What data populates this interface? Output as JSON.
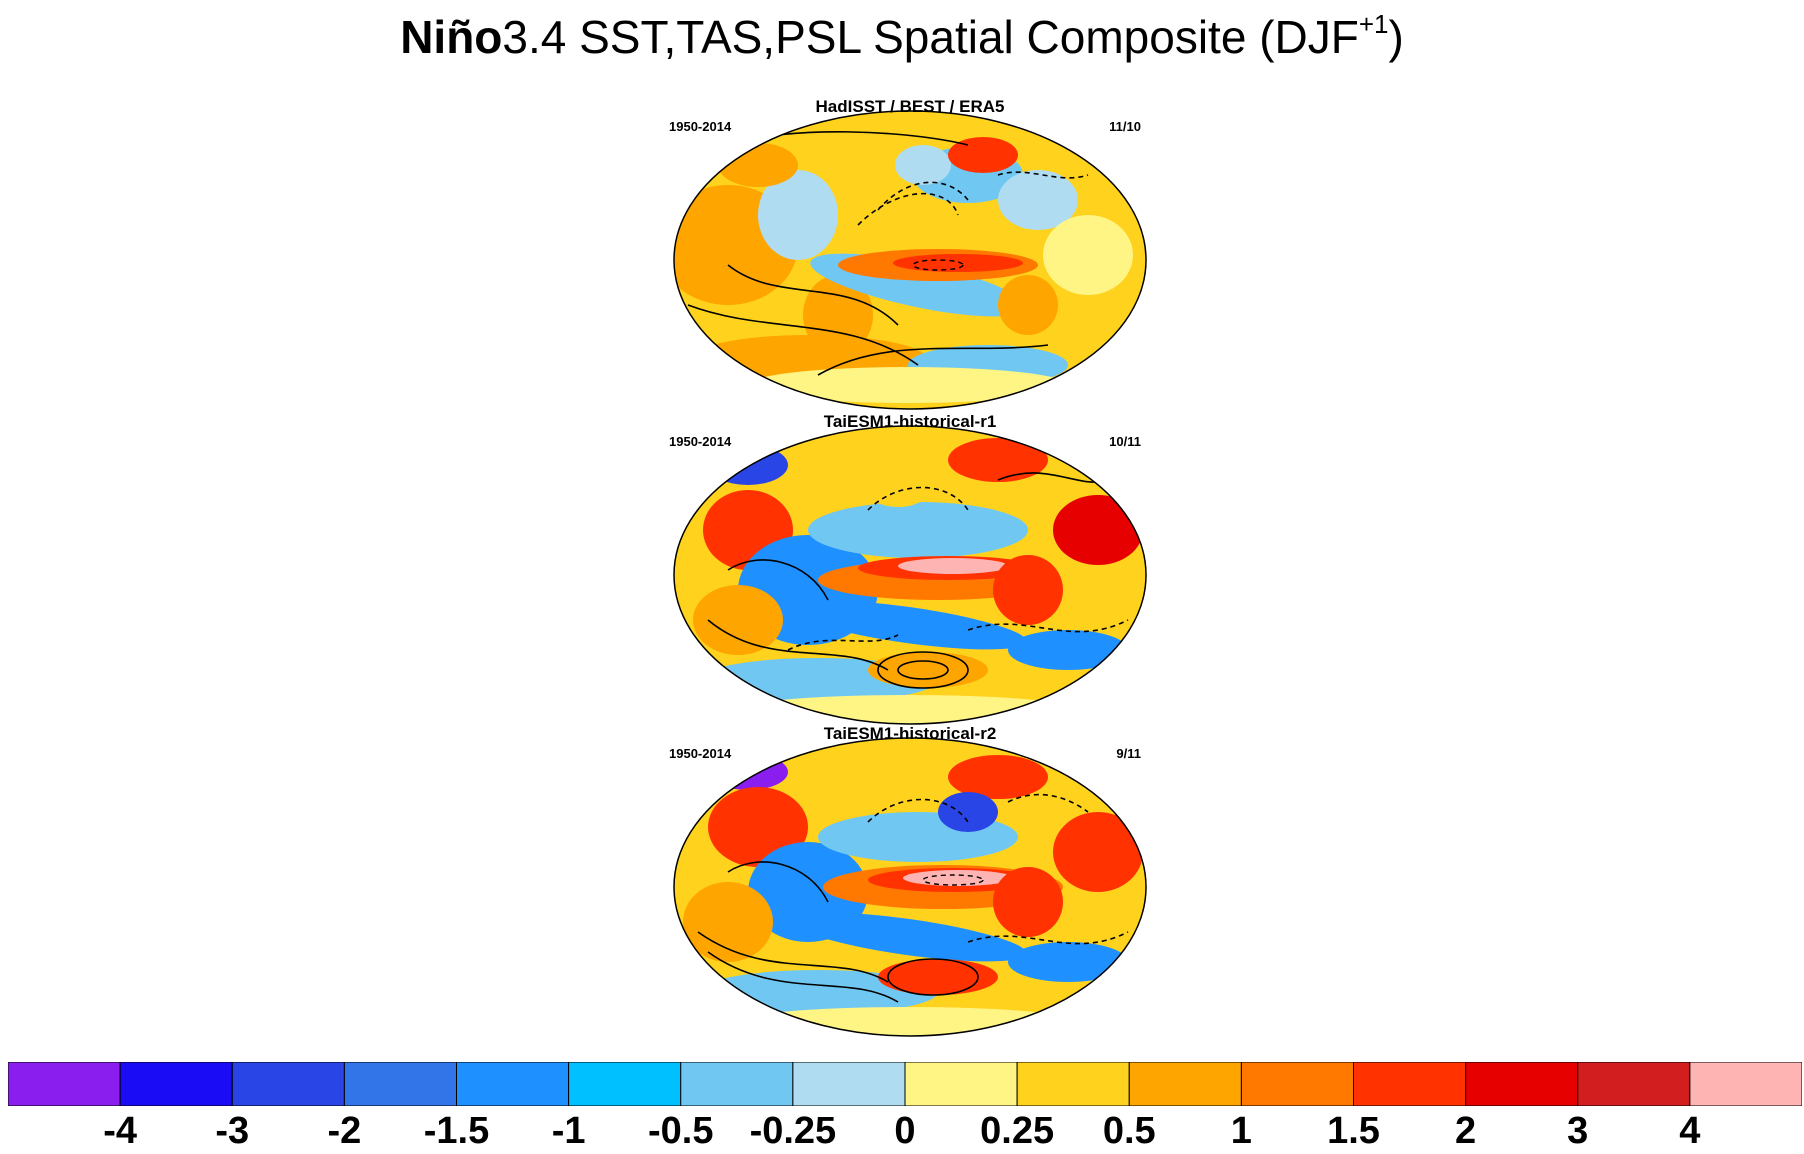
{
  "title": {
    "bold_part": "Niño",
    "rest": "3.4 SST,TAS,PSL Spatial Composite (DJF",
    "superscript": "+1",
    "close": ")"
  },
  "panels": [
    {
      "title": "HadISST / BEST / ERA5",
      "years": "1950-2014",
      "count": "11/10"
    },
    {
      "title": "TaiESM1-historical-r1",
      "years": "1950-2014",
      "count": "10/11"
    },
    {
      "title": "TaiESM1-historical-r2",
      "years": "1950-2014",
      "count": "9/11"
    }
  ],
  "colorbar": {
    "labels": [
      "-4",
      "-3",
      "-2",
      "-1.5",
      "-1",
      "-0.5",
      "-0.25",
      "0",
      "0.25",
      "0.5",
      "1",
      "1.5",
      "2",
      "3",
      "4"
    ],
    "colors": [
      "#8a1eef",
      "#1a0cf5",
      "#2a45e5",
      "#3275e8",
      "#1e90ff",
      "#00c0ff",
      "#70c8f2",
      "#b0dcf2",
      "#fff585",
      "#ffd21e",
      "#ffa500",
      "#ff7800",
      "#ff3200",
      "#e60000",
      "#d21e1e",
      "#ffb4b4"
    ]
  }
}
